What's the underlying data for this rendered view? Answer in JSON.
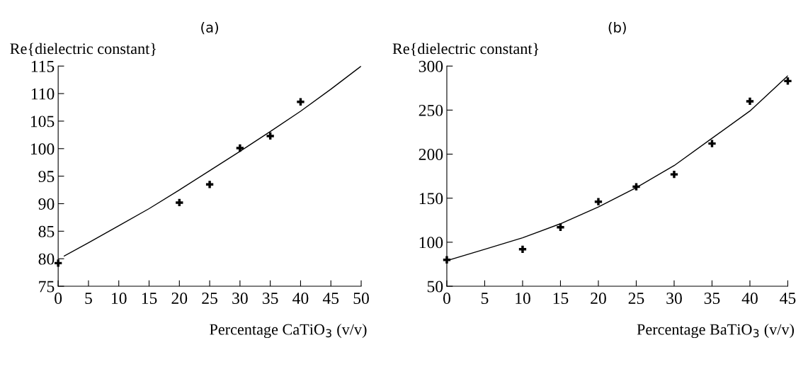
{
  "chart_data": [
    {
      "type": "scatter",
      "title": "(a)",
      "ylabel": "Re{dielectric constant}",
      "xlabel": "Percentage CaTiO$_{3}$ (v/v)",
      "xlim": [
        0,
        50
      ],
      "xticks": [
        0,
        5,
        10,
        15,
        20,
        25,
        30,
        35,
        40,
        45,
        50
      ],
      "ylim": [
        75,
        115
      ],
      "yticks": [
        75,
        80,
        85,
        90,
        95,
        100,
        105,
        110,
        115
      ],
      "grid": false,
      "series": [
        {
          "color": "#000000",
          "marker": "cross",
          "x": [
            0,
            20,
            25,
            30,
            35,
            40
          ],
          "values": [
            79.2,
            90.2,
            93.5,
            100.1,
            102.3,
            108.5
          ]
        },
        {
          "type": "line",
          "color": "#000000",
          "marker": "none",
          "line_style": "solid",
          "x": [
            1,
            5,
            10,
            15,
            20,
            25,
            30,
            35,
            40,
            45,
            50
          ],
          "values": [
            80.5,
            82.9,
            86,
            89.1,
            92.5,
            96,
            99.5,
            103.1,
            106.8,
            110.8,
            115
          ]
        }
      ]
    },
    {
      "type": "scatter",
      "title": "(b)",
      "ylabel": "Re{dielectric constant}",
      "xlabel": "Percentage BaTiO$_{3}$ (v/v)",
      "xlim": [
        0,
        45
      ],
      "xticks": [
        0,
        5,
        10,
        15,
        20,
        25,
        30,
        35,
        40,
        45
      ],
      "ylim": [
        50,
        300
      ],
      "yticks": [
        50,
        100,
        150,
        200,
        250,
        300
      ],
      "grid": false,
      "series": [
        {
          "color": "#000000",
          "marker": "cross",
          "x": [
            0,
            10,
            15,
            20,
            25,
            30,
            35,
            40,
            45
          ],
          "values": [
            80,
            92,
            117,
            146,
            163,
            177,
            212,
            260,
            283
          ]
        },
        {
          "type": "line",
          "color": "#000000",
          "marker": "none",
          "line_style": "solid",
          "x": [
            0,
            5,
            10,
            15,
            20,
            25,
            30,
            35,
            40,
            45
          ],
          "values": [
            79,
            92,
            105,
            121,
            140,
            162,
            187,
            218,
            249,
            289
          ]
        }
      ]
    }
  ]
}
